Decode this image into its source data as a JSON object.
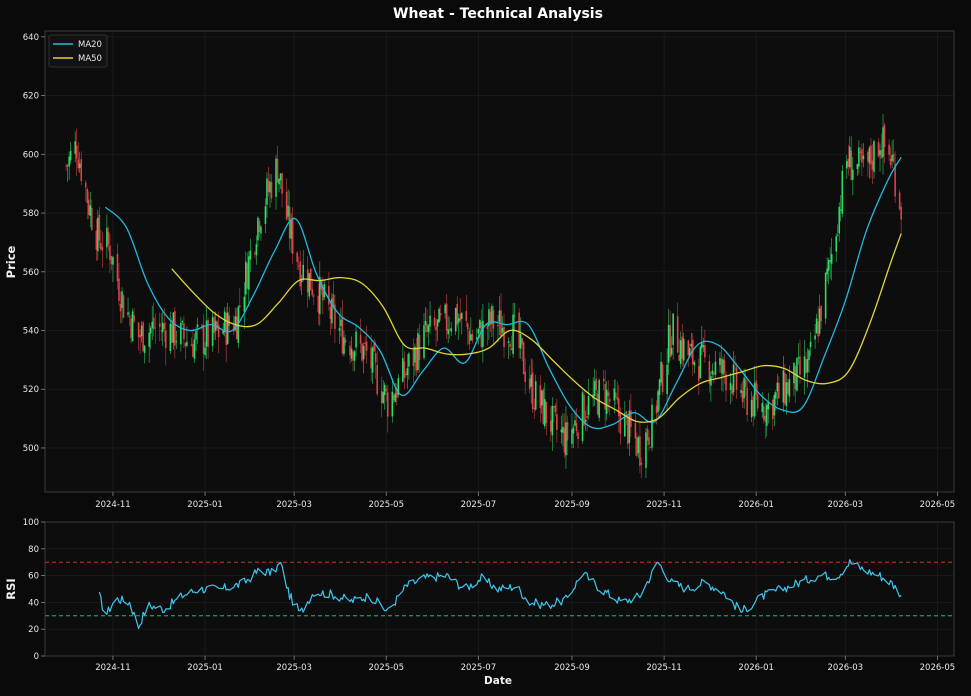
{
  "colors": {
    "background": "#0a0a0a",
    "panel": "#0d0d0d",
    "spine": "#3a3a3a",
    "grid": "#1c1c1c",
    "text": "#e8e8e8",
    "up": "#2ee86a",
    "down": "#e8474a",
    "ma20": "#22b8e0",
    "ma50": "#e0d43a",
    "rsi": "#3fc6ee",
    "overbought": "#c0392b",
    "oversold": "#1abc7c"
  },
  "chart_data": [
    {
      "type": "candlestick",
      "title": "Wheat - Technical Analysis",
      "ylabel": "Price",
      "xlabel": "",
      "x_ticks": [
        "2024-11",
        "2025-01",
        "2025-03",
        "2025-05",
        "2025-07",
        "2025-09",
        "2025-11",
        "2026-01",
        "2026-03",
        "2026-05"
      ],
      "xlim": [
        "2024-09-17",
        "2026-05-12"
      ],
      "y_ticks": [
        500,
        520,
        540,
        560,
        580,
        600,
        620,
        640
      ],
      "ylim": [
        485,
        642
      ],
      "grid": true,
      "legend_position": "top-left",
      "legend": [
        "MA20",
        "MA50"
      ],
      "close_anchors": {
        "dates": [
          "2024-10-01",
          "2024-10-08",
          "2024-10-16",
          "2024-10-22",
          "2024-10-30",
          "2024-11-08",
          "2024-11-18",
          "2024-11-28",
          "2024-12-10",
          "2024-12-22",
          "2025-01-06",
          "2025-01-22",
          "2025-02-05",
          "2025-02-18",
          "2025-02-25",
          "2025-03-05",
          "2025-03-18",
          "2025-04-01",
          "2025-04-18",
          "2025-05-02",
          "2025-05-12",
          "2025-05-26",
          "2025-06-06",
          "2025-06-16",
          "2025-06-28",
          "2025-07-10",
          "2025-07-24",
          "2025-08-06",
          "2025-08-20",
          "2025-08-28",
          "2025-09-10",
          "2025-09-22",
          "2025-10-04",
          "2025-10-16",
          "2025-10-24",
          "2025-11-06",
          "2025-11-18",
          "2025-12-01",
          "2025-12-14",
          "2025-12-24",
          "2026-01-08",
          "2026-01-22",
          "2026-02-05",
          "2026-02-18",
          "2026-03-02",
          "2026-03-14",
          "2026-03-24",
          "2026-04-01",
          "2026-04-07"
        ],
        "values": [
          596,
          603,
          583,
          572,
          568,
          549,
          538,
          541,
          540,
          536,
          538,
          544,
          578,
          596,
          576,
          562,
          552,
          539,
          532,
          516,
          524,
          538,
          541,
          546,
          537,
          543,
          540,
          519,
          507,
          503,
          514,
          519,
          510,
          500,
          508,
          540,
          531,
          528,
          525,
          517,
          514,
          521,
          528,
          560,
          598,
          594,
          605,
          598,
          582
        ]
      },
      "series": [
        {
          "name": "MA20",
          "x": [
            "2024-10-27",
            "2024-11-10",
            "2024-11-24",
            "2024-12-08",
            "2024-12-22",
            "2025-01-05",
            "2025-01-19",
            "2025-02-02",
            "2025-02-16",
            "2025-03-02",
            "2025-03-16",
            "2025-03-30",
            "2025-04-13",
            "2025-04-27",
            "2025-05-11",
            "2025-05-25",
            "2025-06-08",
            "2025-06-22",
            "2025-07-06",
            "2025-07-20",
            "2025-08-03",
            "2025-08-17",
            "2025-08-31",
            "2025-09-14",
            "2025-09-28",
            "2025-10-12",
            "2025-10-26",
            "2025-11-09",
            "2025-11-23",
            "2025-12-07",
            "2025-12-21",
            "2026-01-04",
            "2026-01-18",
            "2026-02-01",
            "2026-02-15",
            "2026-03-01",
            "2026-03-15",
            "2026-03-29",
            "2026-04-07"
          ],
          "values": [
            582,
            575,
            556,
            544,
            540,
            542,
            540,
            552,
            567,
            578,
            559,
            546,
            541,
            533,
            518,
            526,
            534,
            529,
            542,
            542,
            542,
            527,
            514,
            507,
            508,
            512,
            509,
            522,
            535,
            535,
            527,
            518,
            513,
            514,
            531,
            550,
            574,
            591,
            599
          ]
        },
        {
          "name": "MA50",
          "x": [
            "2024-12-10",
            "2024-12-24",
            "2025-01-07",
            "2025-01-21",
            "2025-02-04",
            "2025-02-18",
            "2025-03-04",
            "2025-03-18",
            "2025-04-01",
            "2025-04-15",
            "2025-04-29",
            "2025-05-13",
            "2025-05-27",
            "2025-06-10",
            "2025-06-24",
            "2025-07-08",
            "2025-07-22",
            "2025-08-05",
            "2025-08-19",
            "2025-09-02",
            "2025-09-16",
            "2025-09-30",
            "2025-10-14",
            "2025-10-28",
            "2025-11-11",
            "2025-11-25",
            "2025-12-09",
            "2025-12-23",
            "2026-01-06",
            "2026-01-20",
            "2026-02-03",
            "2026-02-17",
            "2026-03-03",
            "2026-03-17",
            "2026-03-31",
            "2026-04-07"
          ],
          "values": [
            561,
            553,
            546,
            542,
            542,
            549,
            557,
            557,
            558,
            556,
            548,
            535,
            534,
            532,
            532,
            534,
            540,
            537,
            530,
            523,
            517,
            513,
            509,
            510,
            517,
            522,
            524,
            526,
            528,
            527,
            523,
            522,
            526,
            542,
            563,
            573
          ]
        }
      ]
    },
    {
      "type": "line",
      "title": "",
      "ylabel": "RSI",
      "xlabel": "Date",
      "x_ticks": [
        "2024-11",
        "2025-01",
        "2025-03",
        "2025-05",
        "2025-07",
        "2025-09",
        "2025-11",
        "2026-01",
        "2026-03",
        "2026-05"
      ],
      "xlim": [
        "2024-09-17",
        "2026-05-12"
      ],
      "y_ticks": [
        0,
        20,
        40,
        60,
        80,
        100
      ],
      "ylim": [
        0,
        100
      ],
      "grid": true,
      "reference_lines": [
        70,
        30
      ],
      "series": [
        {
          "name": "",
          "x": [
            "2024-10-23",
            "2024-10-27",
            "2024-11-03",
            "2024-11-12",
            "2024-11-18",
            "2024-11-24",
            "2024-12-05",
            "2024-12-17",
            "2024-12-28",
            "2025-01-12",
            "2025-01-26",
            "2025-02-06",
            "2025-02-14",
            "2025-02-20",
            "2025-02-26",
            "2025-03-05",
            "2025-03-14",
            "2025-03-26",
            "2025-04-08",
            "2025-04-20",
            "2025-05-02",
            "2025-05-14",
            "2025-05-26",
            "2025-06-10",
            "2025-06-22",
            "2025-07-03",
            "2025-07-14",
            "2025-07-26",
            "2025-08-04",
            "2025-08-16",
            "2025-08-28",
            "2025-09-08",
            "2025-09-20",
            "2025-10-04",
            "2025-10-16",
            "2025-10-28",
            "2025-11-06",
            "2025-11-16",
            "2025-11-28",
            "2025-12-10",
            "2025-12-22",
            "2026-01-06",
            "2026-01-18",
            "2026-01-30",
            "2026-02-11",
            "2026-02-24",
            "2026-03-04",
            "2026-03-14",
            "2026-03-24",
            "2026-04-01",
            "2026-04-07"
          ],
          "values": [
            45,
            30,
            43,
            40,
            22,
            38,
            35,
            45,
            50,
            50,
            54,
            64,
            62,
            69,
            45,
            32,
            48,
            46,
            41,
            45,
            33,
            52,
            58,
            60,
            50,
            58,
            50,
            52,
            40,
            38,
            42,
            62,
            50,
            40,
            45,
            70,
            55,
            50,
            55,
            48,
            33,
            45,
            50,
            55,
            60,
            60,
            70,
            64,
            60,
            54,
            46
          ]
        }
      ]
    }
  ]
}
